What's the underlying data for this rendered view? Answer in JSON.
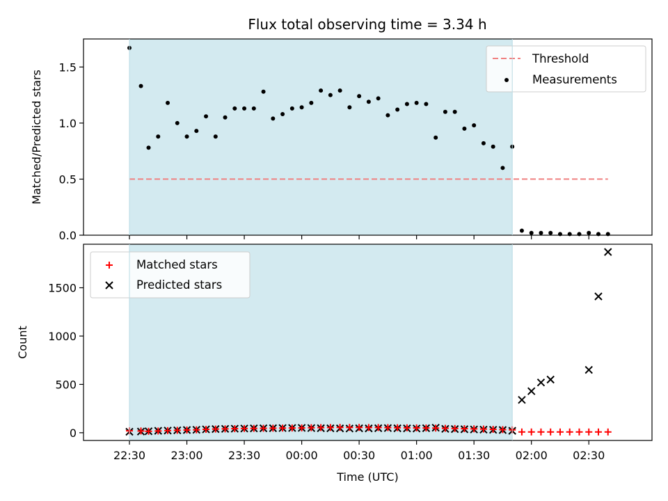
{
  "chart_data": [
    {
      "type": "scatter",
      "title": "Flux total observing time = 3.34 h",
      "xlabel": "",
      "ylabel": "Matched/Predicted stars",
      "ylim": [
        0,
        1.75
      ],
      "yticks": [
        "0.0",
        "0.5",
        "1.0",
        "1.5"
      ],
      "legend_placement": "upper right",
      "shaded_span": {
        "start": "22:30",
        "end": "01:50",
        "color": "#d3eaf0"
      },
      "threshold": {
        "name": "Threshold",
        "value": 0.5,
        "x_start": "22:30",
        "x_end": "02:40",
        "color": "#f08080"
      },
      "series": [
        {
          "name": "Measurements",
          "color": "#000000",
          "x": [
            "22:30",
            "22:36",
            "22:40",
            "22:45",
            "22:50",
            "22:55",
            "23:00",
            "23:05",
            "23:10",
            "23:15",
            "23:20",
            "23:25",
            "23:30",
            "23:35",
            "23:40",
            "23:45",
            "23:50",
            "23:55",
            "24:00",
            "24:05",
            "24:10",
            "24:15",
            "24:20",
            "24:25",
            "24:30",
            "24:35",
            "24:40",
            "24:45",
            "24:50",
            "24:55",
            "25:00",
            "25:05",
            "25:10",
            "25:15",
            "25:20",
            "25:25",
            "25:30",
            "25:35",
            "25:40",
            "25:45",
            "25:50",
            "25:55",
            "26:00",
            "26:05",
            "26:10",
            "26:15",
            "26:20",
            "26:25",
            "26:30",
            "26:35",
            "26:40"
          ],
          "y": [
            1.67,
            1.33,
            0.78,
            0.88,
            1.18,
            1.0,
            0.88,
            0.93,
            1.06,
            0.88,
            1.05,
            1.13,
            1.13,
            1.13,
            1.28,
            1.04,
            1.08,
            1.13,
            1.14,
            1.18,
            1.29,
            1.25,
            1.29,
            1.14,
            1.24,
            1.19,
            1.22,
            1.07,
            1.12,
            1.17,
            1.18,
            1.17,
            0.87,
            1.1,
            1.1,
            0.95,
            0.98,
            0.82,
            0.79,
            0.6,
            0.79,
            0.04,
            0.02,
            0.02,
            0.02,
            0.01,
            0.01,
            0.01,
            0.02,
            0.01,
            0.01
          ]
        }
      ]
    },
    {
      "type": "scatter",
      "title": "",
      "xlabel": "Time (UTC)",
      "ylabel": "Count",
      "ylim": [
        -80,
        1950
      ],
      "yticks": [
        "0",
        "500",
        "1000",
        "1500"
      ],
      "xticks": [
        "22:30",
        "23:00",
        "23:30",
        "00:00",
        "00:30",
        "01:00",
        "01:30",
        "02:00",
        "02:30"
      ],
      "legend_placement": "upper left",
      "shaded_span": {
        "start": "22:30",
        "end": "01:50",
        "color": "#d3eaf0"
      },
      "series": [
        {
          "name": "Matched stars",
          "marker": "plus",
          "color": "#ff0000",
          "x": [
            "22:30",
            "22:36",
            "22:40",
            "22:45",
            "22:50",
            "22:55",
            "23:00",
            "23:05",
            "23:10",
            "23:15",
            "23:20",
            "23:25",
            "23:30",
            "23:35",
            "23:40",
            "23:45",
            "23:50",
            "23:55",
            "24:00",
            "24:05",
            "24:10",
            "24:15",
            "24:20",
            "24:25",
            "24:30",
            "24:35",
            "24:40",
            "24:45",
            "24:50",
            "24:55",
            "25:00",
            "25:05",
            "25:10",
            "25:15",
            "25:20",
            "25:25",
            "25:30",
            "25:35",
            "25:40",
            "25:45",
            "25:50",
            "25:55",
            "26:00",
            "26:05",
            "26:10",
            "26:15",
            "26:20",
            "26:25",
            "26:30",
            "26:35",
            "26:40"
          ],
          "y": [
            20,
            18,
            15,
            18,
            22,
            25,
            28,
            30,
            35,
            38,
            40,
            42,
            44,
            45,
            46,
            47,
            48,
            49,
            50,
            52,
            53,
            54,
            55,
            55,
            55,
            54,
            54,
            53,
            52,
            51,
            50,
            49,
            48,
            46,
            44,
            42,
            40,
            38,
            35,
            32,
            30,
            8,
            8,
            8,
            8,
            8,
            8,
            8,
            8,
            8,
            8
          ]
        },
        {
          "name": "Predicted stars",
          "marker": "x",
          "color": "#000000",
          "x": [
            "22:30",
            "22:36",
            "22:40",
            "22:45",
            "22:50",
            "22:55",
            "23:00",
            "23:05",
            "23:10",
            "23:15",
            "23:20",
            "23:25",
            "23:30",
            "23:35",
            "23:40",
            "23:45",
            "23:50",
            "23:55",
            "24:00",
            "24:05",
            "24:10",
            "24:15",
            "24:20",
            "24:25",
            "24:30",
            "24:35",
            "24:40",
            "24:45",
            "24:50",
            "24:55",
            "25:00",
            "25:05",
            "25:10",
            "25:15",
            "25:20",
            "25:25",
            "25:30",
            "25:35",
            "25:40",
            "25:45",
            "25:50",
            "25:55",
            "26:00",
            "26:05",
            "26:10",
            "26:30",
            "26:35",
            "26:40"
          ],
          "y": [
            10,
            12,
            15,
            20,
            22,
            25,
            28,
            30,
            35,
            38,
            40,
            42,
            44,
            45,
            46,
            47,
            48,
            49,
            50,
            48,
            47,
            46,
            45,
            44,
            46,
            45,
            47,
            48,
            46,
            45,
            44,
            47,
            52,
            40,
            38,
            36,
            34,
            32,
            30,
            28,
            20,
            340,
            430,
            520,
            550,
            650,
            1410,
            1870
          ]
        }
      ]
    }
  ]
}
